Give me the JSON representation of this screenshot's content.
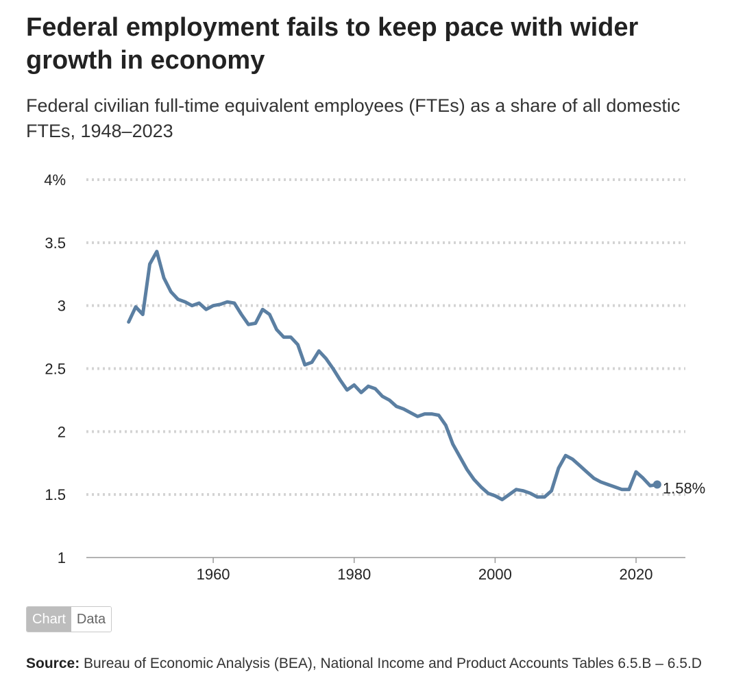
{
  "header": {
    "title": "Federal employment fails to keep pace with wider growth in economy",
    "subtitle": "Federal civilian full-time equivalent employees (FTEs) as a share of all domestic FTEs, 1948–2023"
  },
  "controls": {
    "chart_tab": "Chart",
    "data_tab": "Data",
    "active_tab": "Chart"
  },
  "footer": {
    "source_label": "Source:",
    "source_text": " Bureau of Economic Analysis (BEA), National Income and Product Accounts Tables 6.5.B – 6.5.D"
  },
  "chart_data": {
    "type": "line",
    "title": "Federal employment fails to keep pace with wider growth in economy",
    "subtitle": "Federal civilian full-time equivalent employees (FTEs) as a share of all domestic FTEs, 1948–2023",
    "xlabel": "",
    "ylabel": "",
    "xlim": [
      1942,
      2027
    ],
    "ylim": [
      1,
      4
    ],
    "x_ticks": [
      1960,
      1980,
      2000,
      2020
    ],
    "y_ticks": [
      1,
      1.5,
      2,
      2.5,
      3,
      3.5,
      4
    ],
    "y_tick_labels": [
      "1",
      "1.5",
      "2",
      "2.5",
      "3",
      "3.5",
      "4%"
    ],
    "grid": true,
    "line_color": "#5b7fa2",
    "end_label": "1.58%",
    "series": [
      {
        "x": [
          1948,
          1949,
          1950,
          1951,
          1952,
          1953,
          1954,
          1955,
          1956,
          1957,
          1958,
          1959,
          1960,
          1961,
          1962,
          1963,
          1964,
          1965,
          1966,
          1967,
          1968,
          1969,
          1970,
          1971,
          1972,
          1973,
          1974,
          1975,
          1976,
          1977,
          1978,
          1979,
          1980,
          1981,
          1982,
          1983,
          1984,
          1985,
          1986,
          1987,
          1988,
          1989,
          1990,
          1991,
          1992,
          1993,
          1994,
          1995,
          1996,
          1997,
          1998,
          1999,
          2000,
          2001,
          2002,
          2003,
          2004,
          2005,
          2006,
          2007,
          2008,
          2009,
          2010,
          2011,
          2012,
          2013,
          2014,
          2015,
          2016,
          2017,
          2018,
          2019,
          2020,
          2021,
          2022,
          2023
        ],
        "values": [
          2.87,
          2.99,
          2.93,
          3.33,
          3.43,
          3.22,
          3.11,
          3.05,
          3.03,
          3.0,
          3.02,
          2.97,
          3.0,
          3.01,
          3.03,
          3.02,
          2.93,
          2.85,
          2.86,
          2.97,
          2.93,
          2.81,
          2.75,
          2.75,
          2.69,
          2.53,
          2.55,
          2.64,
          2.58,
          2.5,
          2.41,
          2.33,
          2.37,
          2.31,
          2.36,
          2.34,
          2.28,
          2.25,
          2.2,
          2.18,
          2.15,
          2.12,
          2.14,
          2.14,
          2.13,
          2.05,
          1.9,
          1.8,
          1.7,
          1.62,
          1.56,
          1.51,
          1.49,
          1.46,
          1.5,
          1.54,
          1.53,
          1.51,
          1.48,
          1.48,
          1.53,
          1.71,
          1.81,
          1.78,
          1.73,
          1.68,
          1.63,
          1.6,
          1.58,
          1.56,
          1.54,
          1.54,
          1.68,
          1.63,
          1.57,
          1.58
        ]
      }
    ]
  }
}
